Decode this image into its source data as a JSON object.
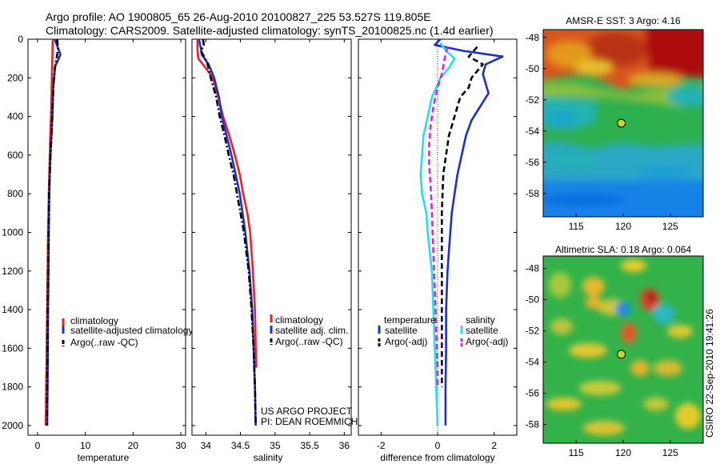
{
  "header": {
    "line1": "Argo profile: AO 1900805_65 26-Aug-2010 20100827_225 53.527S 119.805E",
    "line2": "Climatology: CARS2009. Satellite-adjusted climatology: synTS_20100825.nc (1.4d earlier)"
  },
  "stamp": "CSIRO 22-Sep-2010 19:41:26",
  "colors": {
    "climatology": "#ee2222",
    "satellite": "#1c2fd6",
    "argo": "#000000",
    "sat_salinity": "#22e0e8",
    "argo_salinity": "#e020e0"
  },
  "chart_data": [
    {
      "id": "temp",
      "type": "line",
      "xlabel": "temperature",
      "ylabel": "",
      "xlim": [
        -2,
        31
      ],
      "ylim": [
        0,
        2050
      ],
      "y_reversed": true,
      "xticks": [
        0,
        10,
        20,
        30
      ],
      "xtick_labels": [
        "0",
        "10",
        "20",
        "30"
      ],
      "yticks": [
        0,
        200,
        400,
        600,
        800,
        1000,
        1200,
        1400,
        1600,
        1800,
        2000
      ],
      "ytick_labels": [
        "0",
        "200",
        "400",
        "600",
        "800",
        "1000",
        "1200",
        "1400",
        "1600",
        "1800",
        "2000"
      ],
      "legend_position": "lower-right",
      "series": [
        {
          "name": "climatology",
          "style": "solid",
          "color": "#ee2222",
          "points": [
            [
              3.2,
              0
            ],
            [
              3.1,
              100
            ],
            [
              3.0,
              200
            ],
            [
              2.9,
              300
            ],
            [
              2.8,
              400
            ],
            [
              2.65,
              500
            ],
            [
              2.55,
              600
            ],
            [
              2.45,
              700
            ],
            [
              2.35,
              800
            ],
            [
              2.3,
              900
            ],
            [
              2.2,
              1000
            ],
            [
              2.1,
              1200
            ],
            [
              2.0,
              1400
            ],
            [
              1.9,
              1600
            ],
            [
              1.8,
              1800
            ],
            [
              1.7,
              2000
            ]
          ]
        },
        {
          "name": "satellite-adjusted climatology",
          "style": "solid",
          "color": "#1c2fd6",
          "points": [
            [
              3.6,
              0
            ],
            [
              4.8,
              80
            ],
            [
              3.7,
              140
            ],
            [
              3.3,
              250
            ],
            [
              3.1,
              400
            ],
            [
              2.9,
              500
            ],
            [
              2.7,
              600
            ],
            [
              2.55,
              700
            ],
            [
              2.45,
              800
            ],
            [
              2.35,
              1000
            ],
            [
              2.3,
              1200
            ],
            [
              2.2,
              1400
            ],
            [
              2.15,
              1600
            ],
            [
              2.1,
              1800
            ],
            [
              2.0,
              2000
            ]
          ]
        },
        {
          "name": "Argo(..raw -QC)",
          "style": "dashdot",
          "color": "#000000",
          "points": [
            [
              4.1,
              0
            ],
            [
              4.3,
              50
            ],
            [
              4.0,
              100
            ],
            [
              3.6,
              150
            ],
            [
              3.3,
              250
            ],
            [
              3.1,
              400
            ],
            [
              2.9,
              500
            ],
            [
              2.7,
              600
            ],
            [
              2.55,
              700
            ],
            [
              2.4,
              800
            ],
            [
              2.3,
              1000
            ],
            [
              2.2,
              1200
            ],
            [
              2.1,
              1400
            ],
            [
              2.1,
              1600
            ],
            [
              2.0,
              1800
            ],
            [
              2.0,
              2000
            ]
          ]
        }
      ]
    },
    {
      "id": "salt",
      "type": "line",
      "xlabel": "salinity",
      "ylabel": "",
      "xlim": [
        33.8,
        36.1
      ],
      "ylim": [
        0,
        2050
      ],
      "y_reversed": true,
      "xticks": [
        34,
        34.5,
        35,
        35.5,
        36
      ],
      "xtick_labels": [
        "34",
        "34.5",
        "35",
        "35.5",
        "36"
      ],
      "legend_position": "lower-right",
      "note_lines": [
        "US ARGO PROJECT",
        "PI: DEAN ROEMMICH"
      ],
      "series": [
        {
          "name": "climatology",
          "style": "solid",
          "color": "#ee2222",
          "points": [
            [
              33.88,
              0
            ],
            [
              33.88,
              60
            ],
            [
              33.89,
              100
            ],
            [
              34.0,
              150
            ],
            [
              34.1,
              200
            ],
            [
              34.18,
              300
            ],
            [
              34.25,
              400
            ],
            [
              34.34,
              500
            ],
            [
              34.42,
              600
            ],
            [
              34.49,
              700
            ],
            [
              34.54,
              800
            ],
            [
              34.6,
              900
            ],
            [
              34.64,
              1000
            ],
            [
              34.68,
              1200
            ],
            [
              34.71,
              1400
            ],
            [
              34.72,
              1600
            ],
            [
              34.73,
              1700
            ]
          ]
        },
        {
          "name": "satellite adj. clim.",
          "style": "solid",
          "color": "#1c2fd6",
          "points": [
            [
              33.9,
              0
            ],
            [
              33.93,
              50
            ],
            [
              33.94,
              80
            ],
            [
              34.04,
              130
            ],
            [
              34.12,
              200
            ],
            [
              34.19,
              300
            ],
            [
              34.23,
              400
            ],
            [
              34.3,
              500
            ],
            [
              34.37,
              600
            ],
            [
              34.43,
              700
            ],
            [
              34.49,
              800
            ],
            [
              34.53,
              900
            ],
            [
              34.57,
              1000
            ],
            [
              34.63,
              1200
            ],
            [
              34.67,
              1400
            ],
            [
              34.69,
              1600
            ],
            [
              34.71,
              1800
            ],
            [
              34.72,
              2000
            ]
          ]
        },
        {
          "name": "Argo(..raw -QC)",
          "style": "dashdot",
          "color": "#000000",
          "points": [
            [
              33.96,
              0
            ],
            [
              33.97,
              30
            ],
            [
              33.93,
              60
            ],
            [
              34.02,
              120
            ],
            [
              34.07,
              200
            ],
            [
              34.15,
              300
            ],
            [
              34.2,
              400
            ],
            [
              34.27,
              500
            ],
            [
              34.33,
              600
            ],
            [
              34.4,
              700
            ],
            [
              34.45,
              800
            ],
            [
              34.5,
              900
            ],
            [
              34.55,
              1000
            ],
            [
              34.62,
              1200
            ],
            [
              34.66,
              1400
            ],
            [
              34.69,
              1600
            ],
            [
              34.71,
              1800
            ],
            [
              34.72,
              2000
            ]
          ]
        }
      ]
    },
    {
      "id": "diff",
      "type": "line",
      "xlabel": "difference from climatology",
      "ylabel": "",
      "xlim": [
        -2.8,
        2.8
      ],
      "ylim": [
        0,
        2050
      ],
      "y_reversed": true,
      "xticks": [
        -2,
        0,
        2
      ],
      "xtick_labels": [
        "-2",
        "0",
        "2"
      ],
      "zero_line": 0,
      "legend_groups": [
        {
          "title": "temperature",
          "items": [
            {
              "name": "satellite",
              "style": "solid",
              "color": "#1c2fd6"
            },
            {
              "name": "Argo(-adj)",
              "style": "dashed",
              "color": "#000000"
            }
          ]
        },
        {
          "title": "salinity",
          "items": [
            {
              "name": "satellite",
              "style": "solid",
              "color": "#22e0e8"
            },
            {
              "name": "Argo(-adj)",
              "style": "dashed",
              "color": "#e020e0"
            }
          ]
        }
      ],
      "series": [
        {
          "name": "temperature satellite",
          "style": "solid",
          "color": "#1c2fd6",
          "points": [
            [
              0.1,
              0
            ],
            [
              -0.1,
              30
            ],
            [
              0.9,
              60
            ],
            [
              2.3,
              90
            ],
            [
              1.7,
              130
            ],
            [
              1.6,
              180
            ],
            [
              1.8,
              280
            ],
            [
              1.5,
              350
            ],
            [
              1.2,
              420
            ],
            [
              1.0,
              500
            ],
            [
              0.85,
              600
            ],
            [
              0.7,
              700
            ],
            [
              0.6,
              800
            ],
            [
              0.5,
              900
            ],
            [
              0.45,
              1000
            ],
            [
              0.4,
              1100
            ],
            [
              0.35,
              1200
            ],
            [
              0.3,
              1400
            ],
            [
              0.3,
              1600
            ],
            [
              0.28,
              1800
            ],
            [
              0.28,
              2000
            ]
          ]
        },
        {
          "name": "temperature Argo(-adj)",
          "style": "dashed",
          "color": "#000000",
          "points": [
            [
              1.4,
              40
            ],
            [
              1.1,
              90
            ],
            [
              1.6,
              130
            ],
            [
              1.2,
              200
            ],
            [
              1.1,
              250
            ],
            [
              0.8,
              300
            ],
            [
              0.6,
              400
            ],
            [
              0.4,
              500
            ],
            [
              0.3,
              600
            ],
            [
              0.2,
              700
            ],
            [
              0.15,
              900
            ],
            [
              0.15,
              1100
            ],
            [
              0.15,
              1300
            ],
            [
              0.15,
              1500
            ],
            [
              0.15,
              1700
            ],
            [
              0.15,
              1800
            ]
          ]
        },
        {
          "name": "salinity satellite",
          "style": "solid",
          "color": "#22e0e8",
          "points": [
            [
              0.1,
              20
            ],
            [
              0.3,
              60
            ],
            [
              0.6,
              100
            ],
            [
              0.4,
              150
            ],
            [
              0.1,
              200
            ],
            [
              -0.2,
              300
            ],
            [
              -0.35,
              400
            ],
            [
              -0.5,
              500
            ],
            [
              -0.55,
              600
            ],
            [
              -0.6,
              700
            ],
            [
              -0.55,
              800
            ],
            [
              -0.4,
              900
            ],
            [
              -0.35,
              1000
            ],
            [
              -0.2,
              1200
            ],
            [
              -0.15,
              1400
            ],
            [
              -0.1,
              1600
            ],
            [
              -0.05,
              1800
            ],
            [
              0.0,
              2000
            ]
          ]
        },
        {
          "name": "salinity Argo(-adj)",
          "style": "dashed",
          "color": "#e020e0",
          "points": [
            [
              0.35,
              40
            ],
            [
              0.25,
              100
            ],
            [
              0.15,
              180
            ],
            [
              0.0,
              250
            ],
            [
              -0.15,
              350
            ],
            [
              -0.25,
              450
            ],
            [
              -0.3,
              550
            ],
            [
              -0.3,
              650
            ],
            [
              -0.25,
              750
            ],
            [
              -0.2,
              900
            ],
            [
              -0.15,
              1100
            ],
            [
              -0.1,
              1300
            ],
            [
              -0.05,
              1500
            ],
            [
              0.0,
              1700
            ],
            [
              0.0,
              1800
            ]
          ]
        }
      ]
    },
    {
      "id": "sst_map",
      "type": "heatmap",
      "title": "AMSR-E SST: 3 Argo: 4.16",
      "xlim": [
        111.5,
        128.5
      ],
      "ylim": [
        -59.5,
        -47.5
      ],
      "xticks": [
        115,
        120,
        125
      ],
      "xtick_labels": [
        "115",
        "120",
        "125"
      ],
      "yticks": [
        -48,
        -50,
        -52,
        -54,
        -56,
        -58
      ],
      "ytick_labels": [
        "-48",
        "-50",
        "-52",
        "-54",
        "-56",
        "-58"
      ],
      "marker": {
        "lon": 119.8,
        "lat": -53.5
      }
    },
    {
      "id": "sla_map",
      "type": "heatmap",
      "title": "Altimetric SLA: 0.18 Argo: 0.064",
      "xlim": [
        111.5,
        128.5
      ],
      "ylim": [
        -59.2,
        -47.2
      ],
      "xticks": [
        115,
        120,
        125
      ],
      "xtick_labels": [
        "115",
        "120",
        "125"
      ],
      "yticks": [
        -48,
        -50,
        -52,
        -54,
        -56,
        -58
      ],
      "ytick_labels": [
        "-48",
        "-50",
        "-52",
        "-54",
        "-56",
        "-58"
      ],
      "marker": {
        "lon": 119.8,
        "lat": -53.5
      }
    }
  ]
}
